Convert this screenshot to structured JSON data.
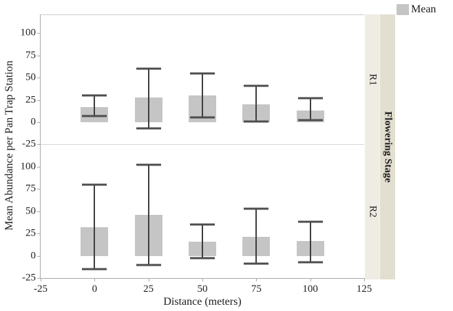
{
  "legend": {
    "label": "Mean"
  },
  "y_axis": {
    "title": "Mean Abundance per Pan Trap Station",
    "ticks": [
      100,
      75,
      50,
      25,
      0,
      -25
    ]
  },
  "x_axis": {
    "title": "Distance (meters)",
    "ticks": [
      -25,
      0,
      25,
      50,
      75,
      100,
      125
    ],
    "range": [
      -25,
      125
    ]
  },
  "facet": {
    "title": "Flowering Stage",
    "panel_labels": [
      "R1",
      "R2"
    ]
  },
  "colors": {
    "bar_fill": "#c5c5c5",
    "error_line": "#3d3d3d",
    "error_cap": "#4d4d4d",
    "axis_line": "#a8a8a8",
    "panel_border": "#cccccc",
    "panel_separator": "#d8d8d8",
    "strip_inner_bg": "#efede3",
    "strip_outer_bg": "#e2dfd0",
    "legend_swatch": "#c5c5c5",
    "text": "#1c1c1c"
  },
  "chart_data": {
    "type": "bar",
    "title": "",
    "xlabel": "Distance (meters)",
    "ylabel": "Mean Abundance per Pan Trap Station",
    "legend_entries": [
      "Mean"
    ],
    "legend_position": "top-right",
    "grid": false,
    "facet_title": "Flowering Stage",
    "x": [
      0,
      25,
      50,
      75,
      100
    ],
    "xlim": [
      -25,
      125
    ],
    "yticks": [
      -25,
      0,
      25,
      50,
      75,
      100
    ],
    "series": [
      {
        "name": "R1",
        "means": [
          17,
          28,
          30,
          20,
          13
        ],
        "err_low": [
          7,
          -7,
          5,
          1,
          2
        ],
        "err_high": [
          30,
          60,
          55,
          41,
          27
        ],
        "ylim": [
          -25.5,
          121
        ]
      },
      {
        "name": "R2",
        "means": [
          32,
          46,
          16,
          21,
          17
        ],
        "err_low": [
          -15,
          -10,
          -3,
          -9,
          -7
        ],
        "err_high": [
          80,
          102,
          35,
          53,
          38
        ],
        "ylim": [
          -25,
          124.7
        ]
      }
    ]
  }
}
